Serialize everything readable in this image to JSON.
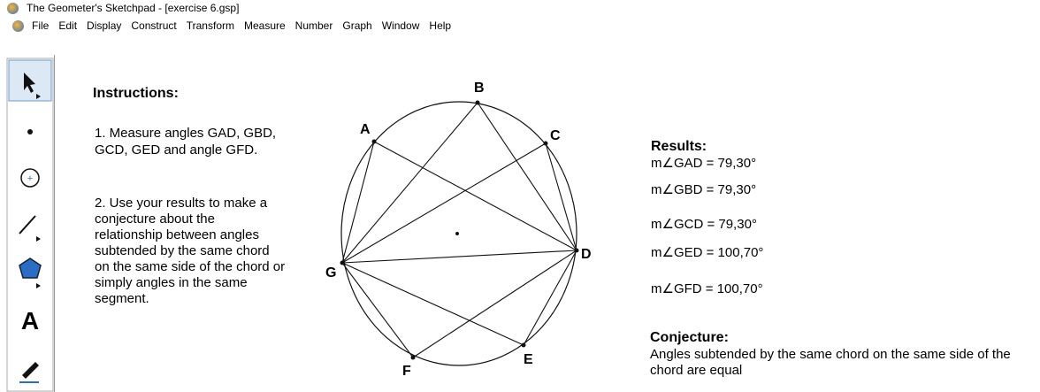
{
  "window_title": "The Geometer's Sketchpad - [exercise 6.gsp]",
  "menu": [
    "File",
    "Edit",
    "Display",
    "Construct",
    "Transform",
    "Measure",
    "Number",
    "Graph",
    "Window",
    "Help"
  ],
  "instructions": {
    "heading": "Instructions:",
    "item1": [
      "1.  Measure angles GAD, GBD,",
      "GCD, GED and angle GFD."
    ],
    "item2": [
      "2. Use your results to make a",
      "conjecture about the",
      "relationship between angles",
      "subtended by the same chord",
      "on the same side of the chord or",
      "simply angles in the same",
      "segment."
    ]
  },
  "points": [
    "A",
    "B",
    "C",
    "D",
    "E",
    "F",
    "G"
  ],
  "results": {
    "heading": "Results:",
    "items": [
      "m∠GAD = 79,30°",
      "m∠GBD = 79,30°",
      "m∠GCD = 79,30°",
      "m∠GED = 100,70°",
      "m∠GFD = 100,70°"
    ]
  },
  "conjecture": {
    "heading": "Conjecture:",
    "lines": [
      "Angles subtended by the same chord on the same side of the",
      "chord are equal"
    ]
  }
}
